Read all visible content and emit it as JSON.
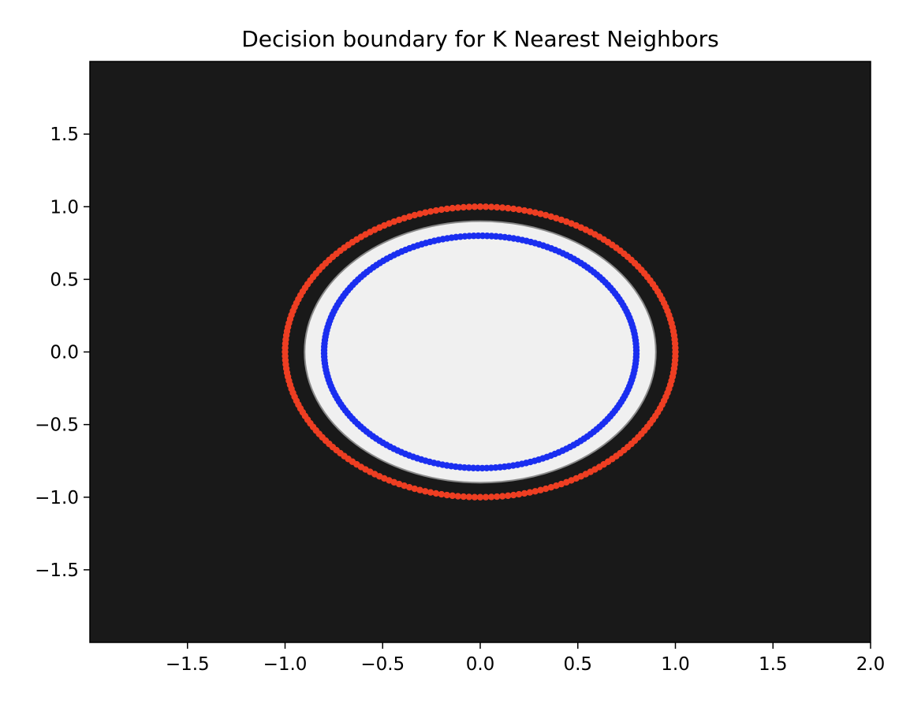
{
  "chart_data": {
    "type": "scatter",
    "title": "Decision boundary for K Nearest Neighbors",
    "xlabel": "",
    "ylabel": "",
    "xlim": [
      -2.0,
      2.0
    ],
    "ylim": [
      -2.0,
      2.0
    ],
    "x_ticks": [
      -1.5,
      -1.0,
      -0.5,
      0.0,
      0.5,
      1.0,
      1.5,
      2.0
    ],
    "x_tick_labels": [
      "−1.5",
      "−1.0",
      "−0.5",
      "0.0",
      "0.5",
      "1.0",
      "1.5",
      "2.0"
    ],
    "y_ticks": [
      1.5,
      1.0,
      0.5,
      0.0,
      -0.5,
      -1.0,
      -1.5
    ],
    "y_tick_labels": [
      "1.5",
      "1.0",
      "0.5",
      "0.0",
      "−0.5",
      "−1.0",
      "−1.5"
    ],
    "grid": false,
    "decision_regions": {
      "background_color": "#191919",
      "inner_region_color": "#f0f0f0",
      "inner_region_boundary_radius_x": 0.9,
      "inner_region_boundary_radius_y": 0.9
    },
    "series": [
      {
        "color": "#ee3e22",
        "shape": "circle",
        "radius": 1.0,
        "num_points": 220
      },
      {
        "color": "#1a2ef0",
        "shape": "circle",
        "radius": 0.8,
        "num_points": 220
      }
    ]
  }
}
